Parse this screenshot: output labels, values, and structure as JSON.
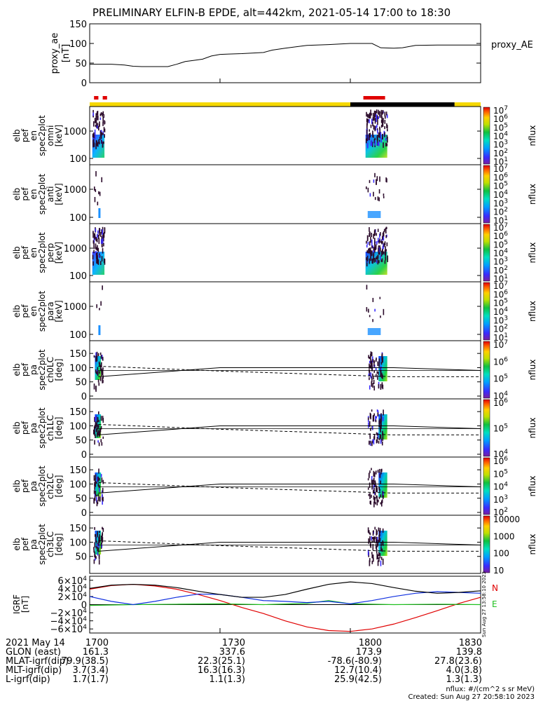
{
  "title": "PRELIMINARY ELFIN-B EPDE, alt=442km, 2021-05-14 17:00 to 18:30",
  "colors": {
    "yellow": "#f5d800",
    "red": "#e00000",
    "black": "#000000",
    "green": "#20c020",
    "blue": "#1030e0"
  },
  "state_bar": {
    "segments": [
      {
        "from": "17:00",
        "to": "18:00",
        "color": "yellow"
      },
      {
        "from": "18:00",
        "to": "18:24",
        "color": "black"
      },
      {
        "from": "18:24",
        "to": "18:30",
        "color": "yellow"
      }
    ],
    "science_zones": [
      {
        "from": "17:01",
        "to": "17:02"
      },
      {
        "from": "17:03",
        "to": "17:04"
      },
      {
        "from": "18:03",
        "to": "18:08"
      }
    ]
  },
  "chart_data": [
    {
      "type": "line",
      "panel": "proxy_ae",
      "ylabel": [
        "proxy_ae",
        "[nT]"
      ],
      "yticks": [
        "150",
        "100",
        "50",
        "0"
      ],
      "ylim": [
        0,
        150
      ],
      "series": [
        {
          "name": "proxy_AE",
          "x": [
            0,
            5,
            8,
            10,
            12,
            14,
            16,
            18,
            20,
            22,
            24,
            26,
            28,
            30,
            32,
            35,
            40,
            42,
            45,
            50,
            55,
            60,
            65,
            67,
            70,
            72,
            75,
            80,
            85,
            90
          ],
          "y": [
            47,
            47,
            45,
            42,
            41,
            41,
            41,
            41,
            47,
            54,
            57,
            60,
            68,
            72,
            73,
            74,
            77,
            83,
            88,
            95,
            97,
            100,
            100,
            89,
            88,
            89,
            95,
            96,
            96,
            96
          ]
        }
      ]
    },
    {
      "type": "heatmap",
      "panel": "en omni",
      "ylabel": [
        "elb",
        "pef",
        "en",
        "spec2plot",
        "omni",
        "[keV]"
      ],
      "yticks": [
        "1000",
        "100"
      ],
      "colorbar": {
        "label": "nflux",
        "ticks": [
          "10^7",
          "10^6",
          "10^5",
          "10^4",
          "10^3",
          "10^2",
          "10^1"
        ]
      }
    },
    {
      "type": "heatmap",
      "panel": "en anti",
      "ylabel": [
        "elb",
        "pef",
        "en",
        "spec2plot",
        "anti",
        "[keV]"
      ],
      "yticks": [
        "1000",
        "100"
      ],
      "colorbar": {
        "label": "nflux",
        "ticks": [
          "10^7",
          "10^6",
          "10^5",
          "10^4",
          "10^3",
          "10^2",
          "10^1"
        ]
      }
    },
    {
      "type": "heatmap",
      "panel": "en perp",
      "ylabel": [
        "elb",
        "pef",
        "en",
        "spec2plot",
        "perp",
        "[keV]"
      ],
      "yticks": [
        "1000",
        "100"
      ],
      "colorbar": {
        "label": "nflux",
        "ticks": [
          "10^7",
          "10^6",
          "10^5",
          "10^4",
          "10^3",
          "10^2",
          "10^1"
        ]
      }
    },
    {
      "type": "heatmap",
      "panel": "en para",
      "ylabel": [
        "elb",
        "pef",
        "en",
        "spec2plot",
        "para",
        "[keV]"
      ],
      "yticks": [
        "1000",
        "100"
      ],
      "colorbar": {
        "label": "nflux",
        "ticks": [
          "10^7",
          "10^6",
          "10^5",
          "10^4",
          "10^3",
          "10^2",
          "10^1"
        ]
      }
    },
    {
      "type": "heatmap",
      "panel": "pa ch0LC",
      "ylabel": [
        "elb",
        "pef",
        "pa",
        "spec2plot",
        "ch0LC",
        "[deg]"
      ],
      "yticks": [
        "150",
        "100",
        "50",
        "0"
      ],
      "ylim": [
        0,
        180
      ],
      "colorbar": {
        "label": "nflux",
        "ticks": [
          "10^7",
          "10^6",
          "10^5",
          "10^4"
        ]
      }
    },
    {
      "type": "heatmap",
      "panel": "pa ch1LC",
      "ylabel": [
        "elb",
        "pef",
        "pa",
        "spec2plot",
        "ch1LC",
        "[deg]"
      ],
      "yticks": [
        "150",
        "100",
        "50",
        "0"
      ],
      "ylim": [
        0,
        180
      ],
      "colorbar": {
        "label": "nflux",
        "ticks": [
          "10^6",
          "10^5",
          "10^4"
        ]
      }
    },
    {
      "type": "heatmap",
      "panel": "pa ch2LC",
      "ylabel": [
        "elb",
        "pef",
        "pa",
        "spec2plot",
        "ch2LC",
        "[deg]"
      ],
      "yticks": [
        "150",
        "100",
        "50",
        "0"
      ],
      "ylim": [
        0,
        180
      ],
      "colorbar": {
        "label": "nflux",
        "ticks": [
          "10^6",
          "10^5",
          "10^4",
          "10^3",
          "10^2"
        ]
      }
    },
    {
      "type": "heatmap",
      "panel": "pa ch3LC",
      "ylabel": [
        "elb",
        "pef",
        "pa",
        "spec2plot",
        "ch3LC",
        "[deg]"
      ],
      "yticks": [
        "150",
        "100",
        "50"
      ],
      "ylim": [
        0,
        180
      ],
      "colorbar": {
        "label": "nflux",
        "ticks": [
          "10000",
          "1000",
          "100",
          "10"
        ]
      }
    },
    {
      "type": "line",
      "panel": "IGRF",
      "ylabel": [
        "IGRF",
        "[nT]"
      ],
      "yticks": [
        "6×10^4",
        "4×10^4",
        "2×10^4",
        "0",
        "−2×10^4",
        "−4×10^4",
        "−6×10^4"
      ],
      "ylim": [
        -70000,
        70000
      ],
      "legend": [
        "N",
        "E"
      ],
      "series": [
        {
          "name": "N",
          "color": "red",
          "x": [
            0,
            5,
            10,
            15,
            20,
            25,
            30,
            35,
            40,
            45,
            50,
            55,
            60,
            65,
            70,
            75,
            80,
            85,
            90
          ],
          "y": [
            38000,
            47000,
            50000,
            46000,
            38000,
            25000,
            10000,
            -7000,
            -22000,
            -40000,
            -55000,
            -64000,
            -66000,
            -60000,
            -48000,
            -32000,
            -15000,
            3000,
            18000
          ]
        },
        {
          "name": "E",
          "color": "green",
          "x": [
            0,
            10,
            20,
            30,
            40,
            50,
            55,
            60,
            70,
            80,
            90
          ],
          "y": [
            -2000,
            0,
            1000,
            2000,
            0,
            3000,
            10000,
            2000,
            0,
            1000,
            0
          ]
        },
        {
          "name": "",
          "color": "blue",
          "x": [
            0,
            5,
            10,
            15,
            20,
            25,
            30,
            35,
            40,
            45,
            50,
            55,
            60,
            65,
            70,
            75,
            80,
            85,
            90
          ],
          "y": [
            20000,
            8000,
            0,
            8000,
            18000,
            26000,
            25000,
            18000,
            10000,
            8000,
            5000,
            8000,
            2000,
            10000,
            20000,
            28000,
            32000,
            30000,
            28000
          ]
        },
        {
          "name": "",
          "color": "black",
          "x": [
            0,
            5,
            10,
            15,
            20,
            25,
            30,
            35,
            40,
            45,
            50,
            55,
            60,
            65,
            70,
            75,
            80,
            85,
            90
          ],
          "y": [
            40000,
            48000,
            50000,
            48000,
            42000,
            33000,
            25000,
            18000,
            18000,
            25000,
            38000,
            50000,
            56000,
            52000,
            42000,
            33000,
            28000,
            30000,
            34000
          ]
        }
      ]
    }
  ],
  "igrf_side_stamp": "Sun Aug 27 13:58:10 2023",
  "footer": {
    "rows": [
      {
        "label": "2021 May 14",
        "values": [
          "1700",
          "1730",
          "1800",
          "1830"
        ]
      },
      {
        "label": "GLON (east)",
        "values": [
          "161.3",
          "337.6",
          "173.9",
          "139.8"
        ]
      },
      {
        "label": "MLAT-igrf(dip)",
        "values": [
          "79.9(38.5)",
          "22.3(25.1)",
          "-78.6(-80.9)",
          "27.8(23.6)"
        ]
      },
      {
        "label": "MLT-igrf(dip)",
        "values": [
          "3.7(3.4)",
          "16.3(16.3)",
          "12.7(10.4)",
          "4.0(3.8)"
        ]
      },
      {
        "label": "L-igrf(dip)",
        "values": [
          "1.7(1.7)",
          "1.1(1.3)",
          "25.9(42.5)",
          "1.3(1.3)"
        ]
      }
    ],
    "units_note": "nflux: #/(cm^2 s sr MeV)",
    "created": "Created: Sun Aug 27 20:58:10 2023"
  }
}
